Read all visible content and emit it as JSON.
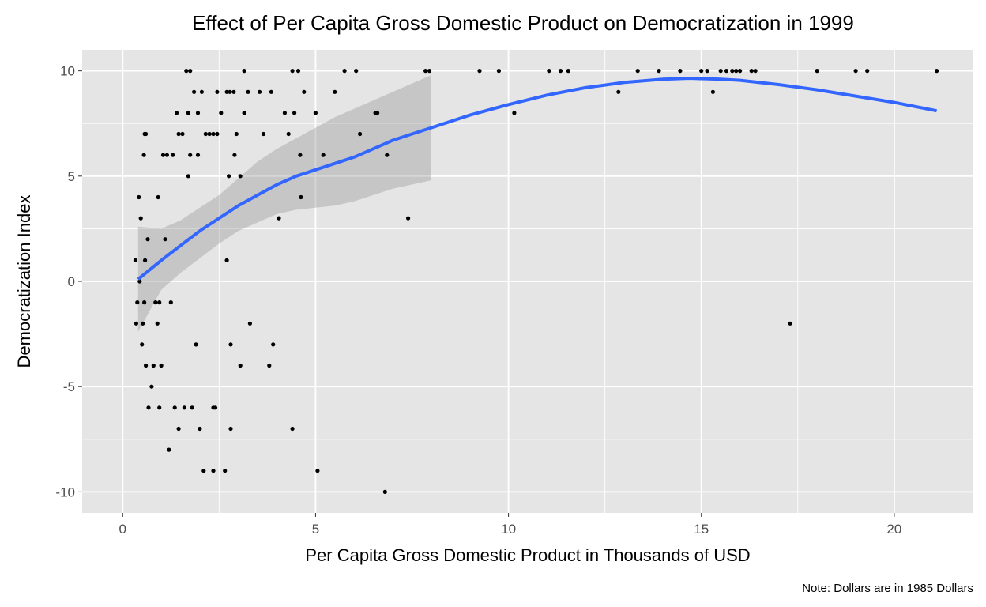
{
  "chart_data": {
    "type": "scatter",
    "title": "Effect of Per Capita Gross Domestic Product on Democratization in 1999",
    "xlabel": "Per Capita Gross Domestic Product in Thousands of USD",
    "ylabel": "Democratization Index",
    "caption": "Note: Dollars are in 1985 Dollars",
    "xlim": [
      -1.05,
      22.05
    ],
    "ylim": [
      -11,
      11
    ],
    "x_ticks": [
      0,
      5,
      10,
      15,
      20
    ],
    "x_tick_labels": [
      "0",
      "5",
      "10",
      "15",
      "20"
    ],
    "y_ticks": [
      -10,
      -5,
      0,
      5,
      10
    ],
    "y_tick_labels": [
      "-10",
      "-5",
      "0",
      "5",
      "10"
    ],
    "grid": true,
    "colors": {
      "panel": "#e5e5e5",
      "grid": "#ffffff",
      "point": "#000000",
      "smooth_line": "#3366ff",
      "confidence_band": "#999999"
    },
    "points": [
      [
        0.33,
        1
      ],
      [
        0.35,
        -2
      ],
      [
        0.38,
        -1
      ],
      [
        0.42,
        4
      ],
      [
        0.44,
        0
      ],
      [
        0.47,
        3
      ],
      [
        0.5,
        -3
      ],
      [
        0.52,
        -2
      ],
      [
        0.55,
        6
      ],
      [
        0.57,
        7
      ],
      [
        0.6,
        7
      ],
      [
        0.56,
        -1
      ],
      [
        0.58,
        1
      ],
      [
        0.6,
        -4
      ],
      [
        0.65,
        2
      ],
      [
        0.67,
        -6
      ],
      [
        0.8,
        -4
      ],
      [
        0.75,
        -5
      ],
      [
        0.85,
        -1
      ],
      [
        0.9,
        -2
      ],
      [
        0.92,
        4
      ],
      [
        0.95,
        -1
      ],
      [
        0.95,
        -6
      ],
      [
        1.0,
        -4
      ],
      [
        1.05,
        6
      ],
      [
        1.1,
        2
      ],
      [
        1.15,
        6
      ],
      [
        1.2,
        -8
      ],
      [
        1.25,
        -1
      ],
      [
        1.3,
        6
      ],
      [
        1.35,
        -6
      ],
      [
        1.4,
        8
      ],
      [
        1.45,
        -7
      ],
      [
        1.45,
        7
      ],
      [
        1.55,
        7
      ],
      [
        1.6,
        -6
      ],
      [
        1.65,
        10
      ],
      [
        1.7,
        8
      ],
      [
        1.7,
        5
      ],
      [
        1.75,
        10
      ],
      [
        1.75,
        6
      ],
      [
        1.8,
        -6
      ],
      [
        1.85,
        9
      ],
      [
        1.9,
        -3
      ],
      [
        1.95,
        8
      ],
      [
        1.95,
        6
      ],
      [
        2.0,
        -7
      ],
      [
        2.05,
        9
      ],
      [
        2.1,
        -9
      ],
      [
        2.15,
        7
      ],
      [
        2.25,
        7
      ],
      [
        2.35,
        -9
      ],
      [
        2.35,
        7
      ],
      [
        2.35,
        -6
      ],
      [
        2.4,
        -6
      ],
      [
        2.45,
        9
      ],
      [
        2.45,
        7
      ],
      [
        2.55,
        8
      ],
      [
        2.65,
        -9
      ],
      [
        2.7,
        9
      ],
      [
        2.7,
        1
      ],
      [
        2.75,
        5
      ],
      [
        2.78,
        9
      ],
      [
        2.8,
        -7
      ],
      [
        2.8,
        -3
      ],
      [
        2.88,
        9
      ],
      [
        2.9,
        6
      ],
      [
        2.95,
        7
      ],
      [
        3.05,
        -4
      ],
      [
        3.05,
        5
      ],
      [
        3.15,
        8
      ],
      [
        3.15,
        10
      ],
      [
        3.25,
        9
      ],
      [
        3.3,
        -2
      ],
      [
        3.55,
        9
      ],
      [
        3.65,
        7
      ],
      [
        3.8,
        -4
      ],
      [
        3.85,
        9
      ],
      [
        3.9,
        -3
      ],
      [
        4.05,
        3
      ],
      [
        4.2,
        8
      ],
      [
        4.3,
        7
      ],
      [
        4.4,
        -7
      ],
      [
        4.4,
        10
      ],
      [
        4.45,
        8
      ],
      [
        4.55,
        10
      ],
      [
        4.6,
        6
      ],
      [
        4.62,
        4
      ],
      [
        4.7,
        9
      ],
      [
        5.0,
        8
      ],
      [
        5.05,
        -9
      ],
      [
        5.2,
        6
      ],
      [
        5.5,
        9
      ],
      [
        5.75,
        10
      ],
      [
        6.05,
        10
      ],
      [
        6.15,
        7
      ],
      [
        6.55,
        8
      ],
      [
        6.6,
        8
      ],
      [
        6.8,
        -10
      ],
      [
        6.85,
        6
      ],
      [
        7.4,
        3
      ],
      [
        7.85,
        10
      ],
      [
        7.95,
        10
      ],
      [
        9.25,
        10
      ],
      [
        9.75,
        10
      ],
      [
        10.15,
        8
      ],
      [
        11.05,
        10
      ],
      [
        11.35,
        10
      ],
      [
        11.55,
        10
      ],
      [
        12.85,
        9
      ],
      [
        13.35,
        10
      ],
      [
        13.9,
        10
      ],
      [
        14.45,
        10
      ],
      [
        15.0,
        10
      ],
      [
        15.15,
        10
      ],
      [
        15.3,
        9
      ],
      [
        15.5,
        10
      ],
      [
        15.65,
        10
      ],
      [
        15.8,
        10
      ],
      [
        15.9,
        10
      ],
      [
        16.0,
        10
      ],
      [
        16.3,
        10
      ],
      [
        16.4,
        10
      ],
      [
        17.3,
        -2
      ],
      [
        18.0,
        10
      ],
      [
        19.0,
        10
      ],
      [
        19.3,
        10
      ],
      [
        21.1,
        10
      ]
    ],
    "smooth": {
      "x": [
        0.4,
        1.0,
        1.5,
        2.0,
        2.5,
        3.0,
        3.5,
        4.0,
        4.5,
        5.0,
        5.5,
        6.0,
        6.5,
        7.0,
        7.5,
        8.0,
        9.0,
        10.0,
        11.0,
        12.0,
        13.0,
        14.0,
        14.7,
        15.5,
        16.0,
        17.0,
        18.0,
        19.0,
        20.0,
        21.1
      ],
      "y": [
        0.1,
        1.0,
        1.7,
        2.4,
        3.0,
        3.6,
        4.1,
        4.6,
        5.0,
        5.3,
        5.6,
        5.9,
        6.3,
        6.7,
        7.0,
        7.3,
        7.9,
        8.4,
        8.85,
        9.2,
        9.45,
        9.6,
        9.65,
        9.6,
        9.55,
        9.35,
        9.1,
        8.8,
        8.5,
        8.1
      ],
      "band_x": [
        0.4,
        1.0,
        1.5,
        2.0,
        2.5,
        3.0,
        3.5,
        4.0,
        4.5,
        5.0,
        5.5,
        6.0,
        6.5,
        7.0,
        7.5,
        8.0
      ],
      "band_upper": [
        2.6,
        2.5,
        2.9,
        3.5,
        4.1,
        4.9,
        5.7,
        6.3,
        6.8,
        7.3,
        7.8,
        8.2,
        8.6,
        9.0,
        9.4,
        9.8
      ],
      "band_lower": [
        -2.4,
        -0.4,
        0.4,
        1.1,
        1.8,
        2.4,
        2.8,
        3.2,
        3.4,
        3.5,
        3.6,
        3.8,
        4.1,
        4.4,
        4.6,
        4.8
      ]
    }
  }
}
